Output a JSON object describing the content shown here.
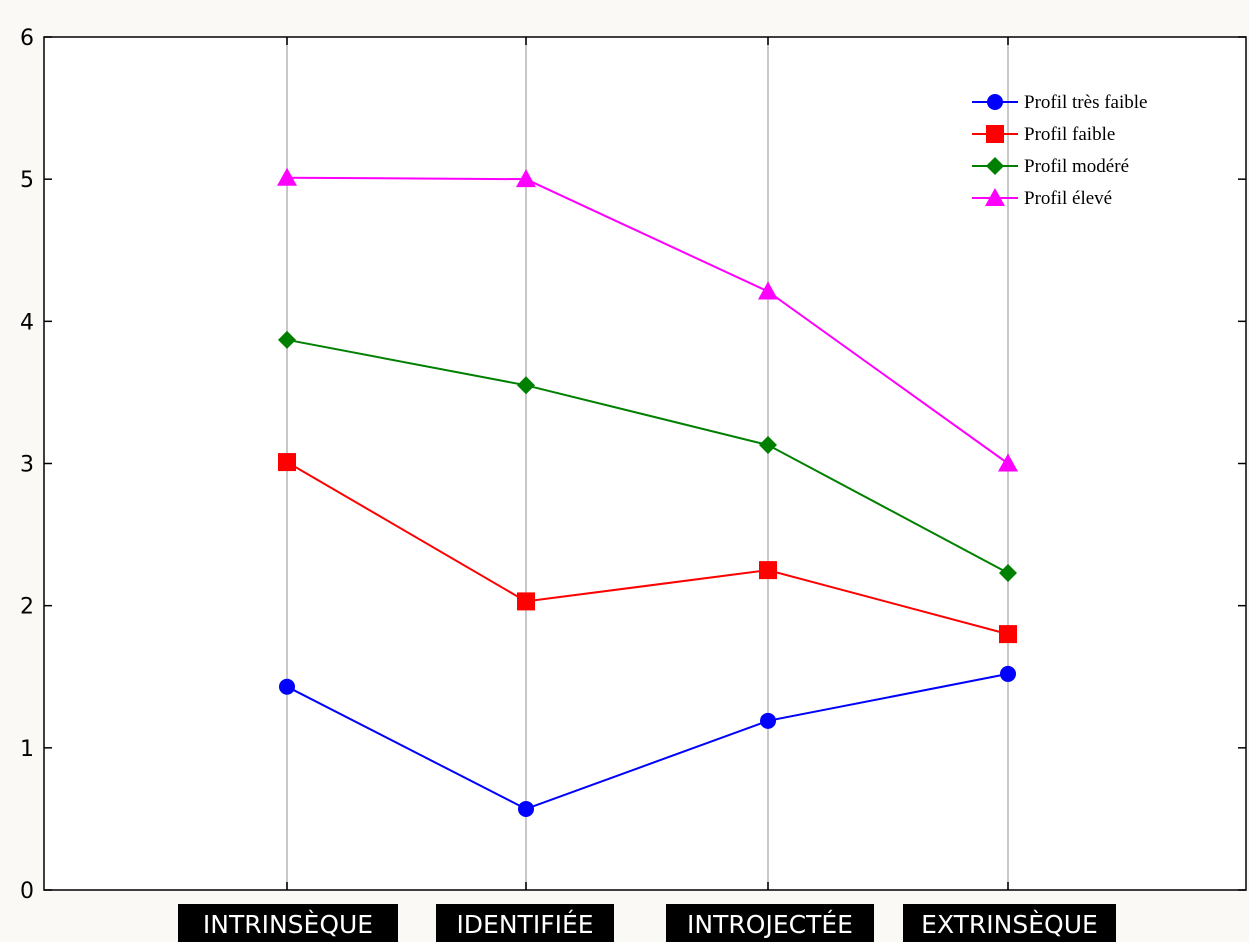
{
  "chart_data": {
    "type": "line",
    "categories": [
      "INTRINSÈQUE",
      "IDENTIFIÉE",
      "INTROJECTÉE",
      "EXTRINSÈQUE"
    ],
    "ylim": [
      0,
      6
    ],
    "yticks": [
      0,
      1,
      2,
      3,
      4,
      5,
      6
    ],
    "grid": "vertical lines at categories",
    "legend_position": "top-right",
    "series": [
      {
        "name": "Profil très faible",
        "color": "#0000ff",
        "marker": "circle",
        "values": [
          1.43,
          0.57,
          1.19,
          1.52
        ]
      },
      {
        "name": "Profil faible",
        "color": "#ff0000",
        "marker": "square",
        "values": [
          3.01,
          2.03,
          2.25,
          1.8
        ]
      },
      {
        "name": "Profil modéré",
        "color": "#008000",
        "marker": "diamond",
        "values": [
          3.87,
          3.55,
          3.13,
          2.23
        ]
      },
      {
        "name": "Profil élevé",
        "color": "#ff00ff",
        "marker": "triangle",
        "values": [
          5.01,
          5.0,
          4.21,
          3.0
        ]
      }
    ]
  }
}
